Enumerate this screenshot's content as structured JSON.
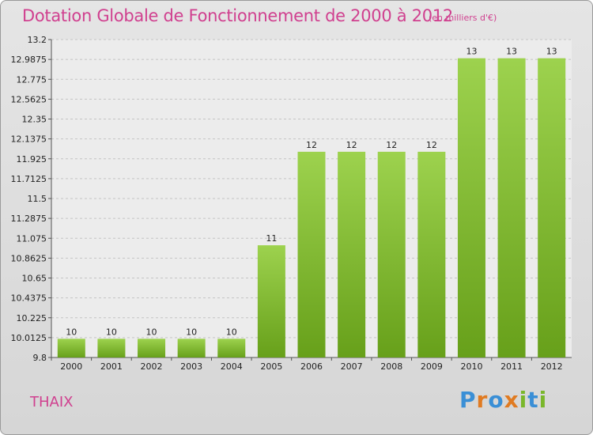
{
  "header": {
    "title": "Dotation Globale de Fonctionnement de 2000 à 2012",
    "unit": "(en milliers d'€)"
  },
  "footer": {
    "commune": "THAIX",
    "logo_letters": [
      {
        "ch": "P",
        "color": "#3a8fd6"
      },
      {
        "ch": "r",
        "color": "#e07b22"
      },
      {
        "ch": "o",
        "color": "#3a8fd6"
      },
      {
        "ch": "x",
        "color": "#e07b22"
      },
      {
        "ch": "i",
        "color": "#7ab72b"
      },
      {
        "ch": "t",
        "color": "#3a8fd6"
      },
      {
        "ch": "i",
        "color": "#7ab72b"
      }
    ]
  },
  "chart_data": {
    "type": "bar",
    "title": "Dotation Globale de Fonctionnement de 2000 à 2012",
    "subtitle": "(en milliers d'€)",
    "categories": [
      "2000",
      "2001",
      "2002",
      "2003",
      "2004",
      "2005",
      "2006",
      "2007",
      "2008",
      "2009",
      "2010",
      "2011",
      "2012"
    ],
    "values": [
      10,
      10,
      10,
      10,
      10,
      11,
      12,
      12,
      12,
      12,
      13,
      13,
      13
    ],
    "bar_values": [
      10,
      10,
      10,
      10,
      10,
      11,
      12,
      12,
      12,
      12,
      13,
      13,
      13
    ],
    "data_labels": [
      "10",
      "10",
      "10",
      "10",
      "10",
      "11",
      "12",
      "12",
      "12",
      "12",
      "13",
      "13",
      "13"
    ],
    "ylim": [
      9.8,
      13.2
    ],
    "yticks": [
      "9.8",
      "10.0125",
      "10.225",
      "10.4375",
      "10.65",
      "10.8625",
      "11.075",
      "11.2875",
      "11.5",
      "11.7125",
      "11.925",
      "12.1375",
      "12.35",
      "12.5625",
      "12.775",
      "12.9875",
      "13.2"
    ],
    "grid": true,
    "bar_color": "#8cc43c",
    "xlabel": "",
    "ylabel": ""
  }
}
